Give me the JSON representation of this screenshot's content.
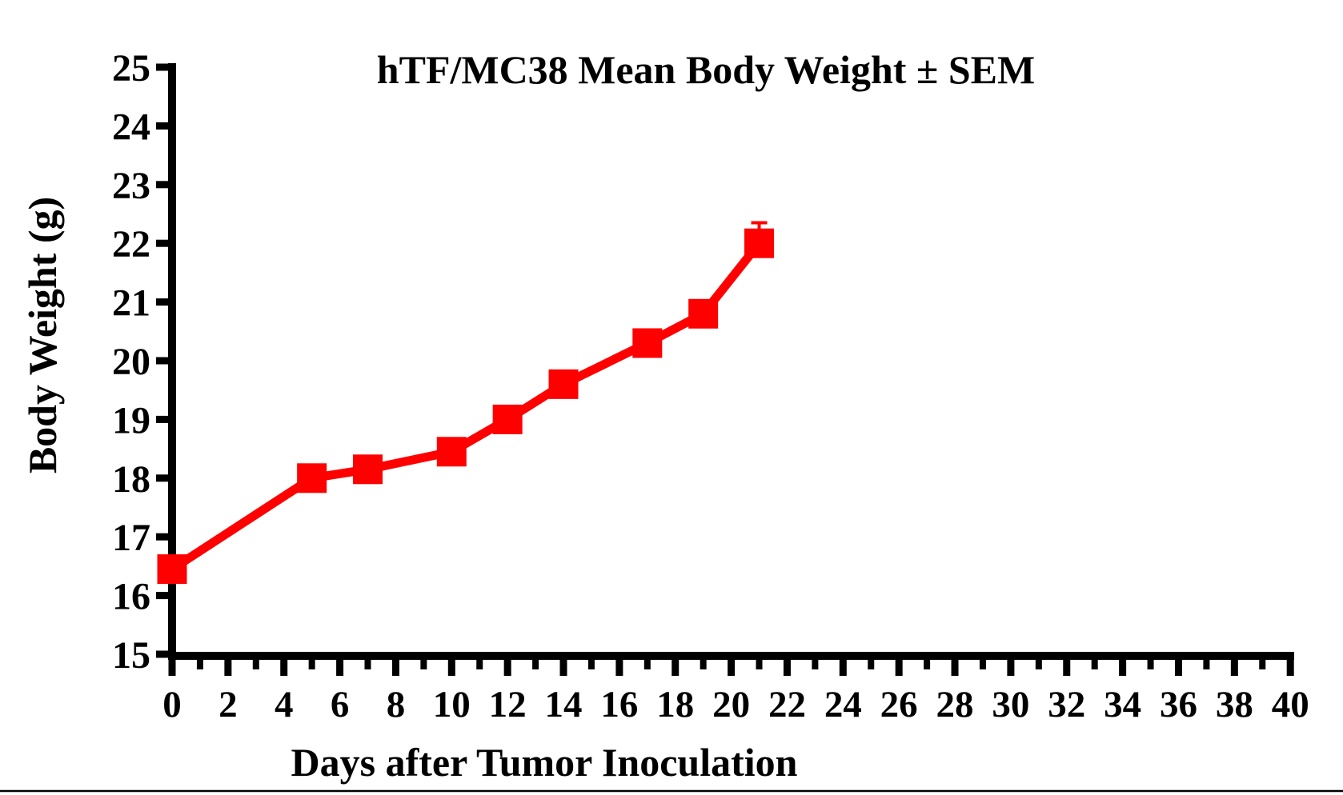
{
  "colors": {
    "series_red": "#FF0000",
    "axis_black": "#000000",
    "background": "#FFFFFF"
  },
  "chart_data": {
    "type": "line",
    "title": "hTF/MC38 Mean Body Weight ± SEM",
    "xlabel": "Days after Tumor Inoculation",
    "ylabel": "Body Weight (g)",
    "xlim": [
      0,
      40
    ],
    "ylim": [
      15,
      25
    ],
    "grid": false,
    "legend_position": "none",
    "x_tick_labels": [
      "0",
      "2",
      "4",
      "6",
      "8",
      "10",
      "12",
      "14",
      "16",
      "18",
      "20",
      "22",
      "24",
      "26",
      "28",
      "30",
      "32",
      "34",
      "36",
      "38",
      "40"
    ],
    "x_minor_tick_step": 1,
    "y_tick_labels": [
      "15",
      "16",
      "17",
      "18",
      "19",
      "20",
      "21",
      "22",
      "23",
      "24",
      "25"
    ],
    "series": [
      {
        "name": "hTF/MC38 mean body weight",
        "marker": "filled-square",
        "color": "#FF0000",
        "x": [
          0,
          5,
          7,
          10,
          12,
          14,
          17,
          19,
          21
        ],
        "y": [
          16.45,
          18.0,
          18.15,
          18.45,
          19.0,
          19.6,
          20.3,
          20.8,
          22.0
        ],
        "sem_upper": [
          0,
          0,
          0,
          0,
          0,
          0,
          0,
          0,
          0.35
        ]
      }
    ]
  }
}
